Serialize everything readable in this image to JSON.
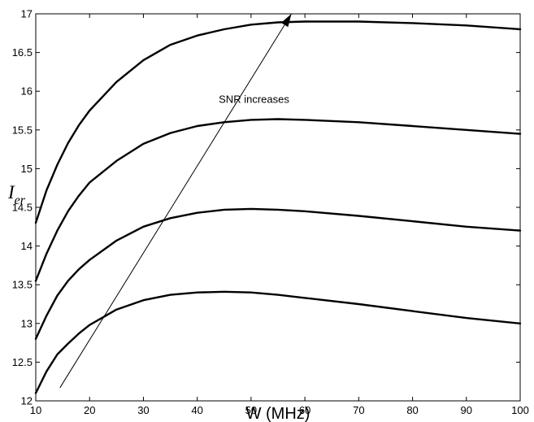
{
  "chart_data": {
    "type": "line",
    "title": "",
    "xlabel": "W (MHz)",
    "ylabel": {
      "main": "I",
      "subscript": "er"
    },
    "xlim": [
      10,
      100
    ],
    "ylim": [
      12,
      17
    ],
    "x_ticks": [
      10,
      20,
      30,
      40,
      50,
      60,
      70,
      80,
      90,
      100
    ],
    "y_ticks": [
      "12",
      "12.5",
      "13",
      "13.5",
      "14",
      "14.5",
      "15",
      "15.5",
      "16",
      "16.5",
      "17"
    ],
    "grid": false,
    "legend": "none",
    "line_color": "#000000",
    "x": [
      10,
      12,
      14,
      16,
      18,
      20,
      25,
      30,
      35,
      40,
      45,
      50,
      55,
      60,
      70,
      80,
      90,
      100
    ],
    "series": [
      {
        "values": [
          12.1,
          12.38,
          12.6,
          12.74,
          12.87,
          12.98,
          13.18,
          13.3,
          13.37,
          13.4,
          13.41,
          13.4,
          13.37,
          13.33,
          13.25,
          13.16,
          13.07,
          13.0
        ]
      },
      {
        "values": [
          12.8,
          13.1,
          13.36,
          13.55,
          13.7,
          13.82,
          14.07,
          14.25,
          14.36,
          14.43,
          14.47,
          14.48,
          14.47,
          14.45,
          14.39,
          14.32,
          14.25,
          14.2
        ]
      },
      {
        "values": [
          13.55,
          13.9,
          14.2,
          14.45,
          14.65,
          14.82,
          15.1,
          15.32,
          15.46,
          15.55,
          15.6,
          15.63,
          15.64,
          15.63,
          15.6,
          15.55,
          15.5,
          15.45
        ]
      },
      {
        "values": [
          14.3,
          14.72,
          15.05,
          15.33,
          15.56,
          15.75,
          16.12,
          16.4,
          16.6,
          16.72,
          16.8,
          16.86,
          16.89,
          16.9,
          16.9,
          16.88,
          16.85,
          16.8
        ]
      }
    ],
    "annotations": [
      {
        "text": "SNR increases",
        "x": 44,
        "y": 15.85
      }
    ],
    "arrow": {
      "from": [
        14.5,
        12.17
      ],
      "to": [
        57.5,
        17.0
      ]
    }
  }
}
